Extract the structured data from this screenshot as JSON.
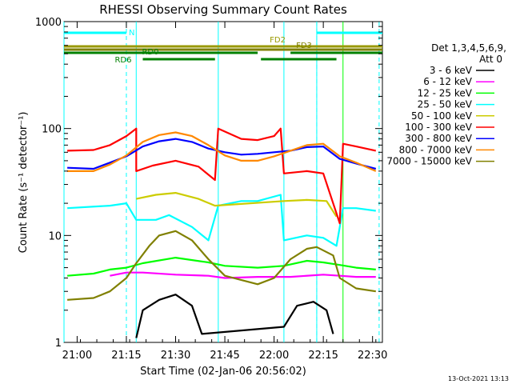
{
  "chart_data": {
    "type": "line",
    "title": "RHESSI Observing Summary Count Rates",
    "ylabel": "Count Rate (s⁻¹ detector⁻¹)",
    "xlabel": "Start Time (02-Jan-06 20:56:02)",
    "yscale": "log",
    "ylim": [
      1,
      1000
    ],
    "xlim": [
      "20:56",
      "22:33"
    ],
    "x_ticks": [
      "21:00",
      "21:15",
      "21:30",
      "21:45",
      "22:00",
      "22:15",
      "22:30"
    ],
    "y_ticks": [
      "1",
      "10",
      "100",
      "1000"
    ],
    "legend_header": [
      "Det 1,3,4,5,6,9,",
      "Att 0"
    ],
    "legend_placement": "right",
    "series": [
      {
        "name": "3 - 6 keV",
        "color": "#000000",
        "points": [
          [
            "21:18",
            1.1
          ],
          [
            "21:20",
            2
          ],
          [
            "21:25",
            2.5
          ],
          [
            "21:30",
            2.8
          ],
          [
            "21:35",
            2.2
          ],
          [
            "21:38",
            1.2
          ],
          [
            "22:03",
            1.4
          ],
          [
            "22:07",
            2.2
          ],
          [
            "22:12",
            2.4
          ],
          [
            "22:16",
            2.0
          ],
          [
            "22:18",
            1.2
          ]
        ]
      },
      {
        "name": "6 - 12 keV",
        "color": "#ff00ff",
        "points": [
          [
            "21:10",
            4.2
          ],
          [
            "21:15",
            4.5
          ],
          [
            "21:20",
            4.5
          ],
          [
            "21:30",
            4.3
          ],
          [
            "21:40",
            4.2
          ],
          [
            "21:45",
            4.0
          ],
          [
            "21:55",
            4.1
          ],
          [
            "22:00",
            4.1
          ],
          [
            "22:05",
            4.1
          ],
          [
            "22:15",
            4.3
          ],
          [
            "22:20",
            4.2
          ],
          [
            "22:25",
            4.1
          ],
          [
            "22:31",
            4.1
          ]
        ]
      },
      {
        "name": "12 - 25 keV",
        "color": "#00ff00",
        "points": [
          [
            "20:57",
            4.2
          ],
          [
            "21:05",
            4.4
          ],
          [
            "21:10",
            4.8
          ],
          [
            "21:15",
            5.0
          ],
          [
            "21:20",
            5.5
          ],
          [
            "21:30",
            6.2
          ],
          [
            "21:40",
            5.6
          ],
          [
            "21:45",
            5.2
          ],
          [
            "21:55",
            5.0
          ],
          [
            "22:03",
            5.2
          ],
          [
            "22:10",
            5.8
          ],
          [
            "22:15",
            5.6
          ],
          [
            "22:20",
            5.3
          ],
          [
            "22:25",
            5.0
          ],
          [
            "22:31",
            4.8
          ]
        ]
      },
      {
        "name": "25 - 50 keV",
        "color": "#00ffff",
        "points": [
          [
            "20:57",
            18
          ],
          [
            "21:10",
            19
          ],
          [
            "21:15",
            20
          ],
          [
            "21:18",
            14
          ],
          [
            "21:24",
            14
          ],
          [
            "21:28",
            15.5
          ],
          [
            "21:35",
            12
          ],
          [
            "21:40",
            9
          ],
          [
            "21:43",
            19
          ],
          [
            "21:50",
            21
          ],
          [
            "21:55",
            21
          ],
          [
            "22:02",
            24
          ],
          [
            "22:03",
            9
          ],
          [
            "22:10",
            10
          ],
          [
            "22:15",
            9.5
          ],
          [
            "22:19",
            8
          ],
          [
            "22:21",
            18
          ],
          [
            "22:25",
            18
          ],
          [
            "22:31",
            17
          ]
        ]
      },
      {
        "name": "50 - 100 keV",
        "color": "#cccc00",
        "points": [
          [
            "21:18",
            22
          ],
          [
            "21:24",
            24
          ],
          [
            "21:30",
            25
          ],
          [
            "21:37",
            22
          ],
          [
            "21:42",
            19
          ],
          [
            "22:03",
            21
          ],
          [
            "22:10",
            21.5
          ],
          [
            "22:16",
            21
          ],
          [
            "22:19",
            15
          ]
        ]
      },
      {
        "name": "100 - 300 keV",
        "color": "#ff0000",
        "points": [
          [
            "20:57",
            62
          ],
          [
            "21:05",
            63
          ],
          [
            "21:10",
            70
          ],
          [
            "21:15",
            85
          ],
          [
            "21:18",
            100
          ],
          [
            "21:18",
            40
          ],
          [
            "21:23",
            45
          ],
          [
            "21:30",
            50
          ],
          [
            "21:37",
            44
          ],
          [
            "21:42",
            33
          ],
          [
            "21:43",
            100
          ],
          [
            "21:50",
            80
          ],
          [
            "21:55",
            78
          ],
          [
            "22:00",
            85
          ],
          [
            "22:02",
            100
          ],
          [
            "22:03",
            38
          ],
          [
            "22:10",
            40
          ],
          [
            "22:15",
            38
          ],
          [
            "22:20",
            13
          ],
          [
            "22:21",
            72
          ],
          [
            "22:25",
            68
          ],
          [
            "22:31",
            62
          ]
        ]
      },
      {
        "name": "300 - 800 keV",
        "color": "#0000ff",
        "points": [
          [
            "20:57",
            43
          ],
          [
            "21:05",
            42
          ],
          [
            "21:10",
            48
          ],
          [
            "21:15",
            55
          ],
          [
            "21:20",
            68
          ],
          [
            "21:25",
            76
          ],
          [
            "21:30",
            80
          ],
          [
            "21:35",
            75
          ],
          [
            "21:40",
            65
          ],
          [
            "21:45",
            60
          ],
          [
            "21:50",
            57
          ],
          [
            "21:55",
            58
          ],
          [
            "22:00",
            60
          ],
          [
            "22:05",
            62
          ],
          [
            "22:10",
            67
          ],
          [
            "22:15",
            68
          ],
          [
            "22:20",
            52
          ],
          [
            "22:25",
            47
          ],
          [
            "22:31",
            42
          ]
        ]
      },
      {
        "name": "800 - 7000 keV",
        "color": "#ff8800",
        "points": [
          [
            "20:57",
            40
          ],
          [
            "21:05",
            40
          ],
          [
            "21:10",
            46
          ],
          [
            "21:15",
            56
          ],
          [
            "21:20",
            75
          ],
          [
            "21:25",
            87
          ],
          [
            "21:30",
            92
          ],
          [
            "21:35",
            85
          ],
          [
            "21:40",
            70
          ],
          [
            "21:45",
            56
          ],
          [
            "21:50",
            50
          ],
          [
            "21:55",
            50
          ],
          [
            "22:00",
            55
          ],
          [
            "22:05",
            62
          ],
          [
            "22:10",
            70
          ],
          [
            "22:15",
            72
          ],
          [
            "22:20",
            55
          ],
          [
            "22:25",
            48
          ],
          [
            "22:31",
            40
          ]
        ]
      },
      {
        "name": "7000 - 15000 keV",
        "color": "#808000",
        "points": [
          [
            "20:57",
            2.5
          ],
          [
            "21:05",
            2.6
          ],
          [
            "21:10",
            3.0
          ],
          [
            "21:15",
            4.0
          ],
          [
            "21:18",
            5.5
          ],
          [
            "21:22",
            8
          ],
          [
            "21:25",
            10
          ],
          [
            "21:30",
            11
          ],
          [
            "21:35",
            9
          ],
          [
            "21:40",
            6
          ],
          [
            "21:45",
            4.2
          ],
          [
            "21:55",
            3.5
          ],
          [
            "22:00",
            4.0
          ],
          [
            "22:05",
            6
          ],
          [
            "22:10",
            7.5
          ],
          [
            "22:13",
            7.8
          ],
          [
            "22:18",
            6.5
          ],
          [
            "22:20",
            4.0
          ],
          [
            "22:25",
            3.2
          ],
          [
            "22:31",
            3.0
          ]
        ]
      }
    ],
    "flag_bars": [
      {
        "label": "N",
        "color": "#00ffff",
        "segments": [
          [
            "20:56",
            "21:15"
          ],
          [
            "22:13",
            "22:33"
          ]
        ]
      },
      {
        "label": "FD2",
        "color": "#999900",
        "segments": [
          [
            "20:56",
            "22:33"
          ]
        ]
      },
      {
        "label": "FD3",
        "color": "#808000",
        "segments": [
          [
            "20:56",
            "22:33"
          ]
        ]
      },
      {
        "label": "RD0",
        "color": "#008000",
        "segments": [
          [
            "20:56",
            "21:55"
          ],
          [
            "22:05",
            "22:33"
          ]
        ]
      },
      {
        "label": "RD6",
        "color": "#008000",
        "segments": [
          [
            "21:20",
            "21:42"
          ],
          [
            "21:56",
            "22:19"
          ]
        ]
      }
    ],
    "vlines": [
      {
        "t": "21:15",
        "color": "#00ffff",
        "style": "dashed"
      },
      {
        "t": "22:13",
        "color": "#00ffff",
        "style": "dashed"
      },
      {
        "t": "22:32",
        "color": "#00ffff",
        "style": "dashed"
      },
      {
        "t": "20:56",
        "color": "#00ffff",
        "style": "solid"
      },
      {
        "t": "21:18",
        "color": "#00ffff",
        "style": "solid"
      },
      {
        "t": "21:43",
        "color": "#00ffff",
        "style": "solid"
      },
      {
        "t": "22:03",
        "color": "#00ffff",
        "style": "solid"
      },
      {
        "t": "22:13",
        "color": "#00ffff",
        "style": "solid"
      },
      {
        "t": "22:21",
        "color": "#00ff00",
        "style": "solid"
      }
    ],
    "footer_date": "13-Oct-2021 13:13"
  }
}
